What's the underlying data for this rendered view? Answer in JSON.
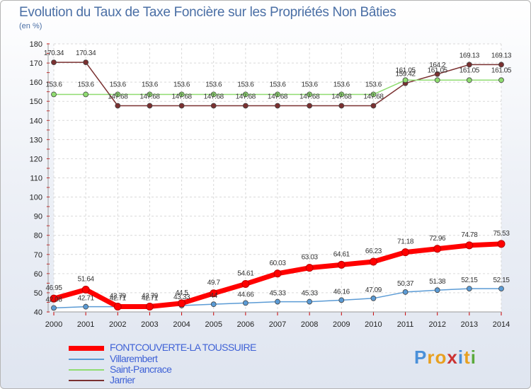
{
  "chart_data": {
    "type": "line",
    "title": "Evolution du Taux de Taxe Foncière sur les Propriétés Non Bâties",
    "ylabel": "(en %)",
    "xlabel": "",
    "ylim": [
      40,
      180
    ],
    "yticks": [
      40,
      50,
      60,
      70,
      80,
      90,
      100,
      110,
      120,
      130,
      140,
      150,
      160,
      170,
      180
    ],
    "categories": [
      "2000",
      "2001",
      "2002",
      "2003",
      "2004",
      "2005",
      "2006",
      "2007",
      "2008",
      "2009",
      "2010",
      "2011",
      "2012",
      "2013",
      "2014"
    ],
    "series": [
      {
        "name": "FONTCOUVERTE-LA TOUSSUIRE",
        "color": "#ff0000",
        "values": [
          46.95,
          51.64,
          42.79,
          42.79,
          44.5,
          49.7,
          54.61,
          60.03,
          63.03,
          64.61,
          66.23,
          71.18,
          72.96,
          74.78,
          75.53
        ],
        "labels": [
          "46.95",
          "51.64",
          "42.79",
          "42.79",
          "44.5",
          "49.7",
          "54.61",
          "60.03",
          "63.03",
          "64.61",
          "66.23",
          "71.18",
          "72.96",
          "74.78",
          "75.53"
        ]
      },
      {
        "name": "Villarembert",
        "color": "#5b9bd5",
        "values": [
          42.08,
          42.71,
          42.71,
          42.71,
          43.33,
          44,
          44.66,
          45.33,
          45.33,
          46.16,
          47.09,
          50.37,
          51.38,
          52.15,
          52.15
        ],
        "labels": [
          "42.08",
          "42.71",
          "42.71",
          "42.71",
          "43.33",
          "44",
          "44.66",
          "45.33",
          "45.33",
          "46.16",
          "47.09",
          "50.37",
          "51.38",
          "52.15",
          "52.15"
        ]
      },
      {
        "name": "Saint-Pancrace",
        "color": "#8fdc70",
        "values": [
          153.6,
          153.6,
          153.6,
          153.6,
          153.6,
          153.6,
          153.6,
          153.6,
          153.6,
          153.6,
          153.6,
          161.05,
          161.05,
          161.05,
          161.05
        ],
        "labels": [
          "153.6",
          "153.6",
          "153.6",
          "153.6",
          "153.6",
          "153.6",
          "153.6",
          "153.6",
          "153.6",
          "153.6",
          "153.6",
          "161.05",
          "161.05",
          "161.05",
          "161.05"
        ]
      },
      {
        "name": "Jarrier",
        "color": "#7a3030",
        "values": [
          170.34,
          170.34,
          147.68,
          147.68,
          147.68,
          147.68,
          147.68,
          147.68,
          147.68,
          147.68,
          147.68,
          159.42,
          164.2,
          169.13,
          169.13
        ],
        "labels": [
          "170.34",
          "170.34",
          "147.68",
          "147.68",
          "147.68",
          "147.68",
          "147.68",
          "147.68",
          "147.68",
          "147.68",
          "147.68",
          "159.42",
          "164.2",
          "169.13",
          "169.13"
        ]
      }
    ]
  },
  "legend": [
    {
      "label": "FONTCOUVERTE-LA TOUSSUIRE",
      "color": "#ff0000"
    },
    {
      "label": "Villarembert",
      "color": "#5b9bd5"
    },
    {
      "label": "Saint-Pancrace",
      "color": "#8fdc70"
    },
    {
      "label": "Jarrier",
      "color": "#7a3030"
    }
  ],
  "logo": {
    "text": "Proxiti",
    "letters": [
      "P",
      "r",
      "o",
      "x",
      "i",
      "t",
      "i"
    ],
    "colors": [
      "#4a90d9",
      "#e8a020",
      "#e8a020",
      "#cc3333",
      "#4a90d9",
      "#e8a020",
      "#5aaa3c"
    ]
  }
}
